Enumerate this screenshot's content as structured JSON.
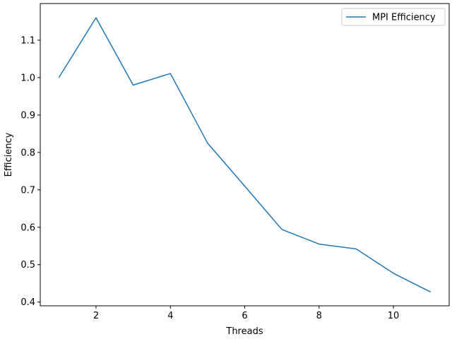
{
  "chart_data": {
    "type": "line",
    "title": "",
    "xlabel": "Threads",
    "ylabel": "Efficiency",
    "xlim": [
      0.5,
      11.5
    ],
    "ylim": [
      0.39,
      1.198
    ],
    "x_ticks": [
      2,
      4,
      6,
      8,
      10
    ],
    "x_tick_labels": [
      "2",
      "4",
      "6",
      "8",
      "10"
    ],
    "y_ticks": [
      0.4,
      0.5,
      0.6,
      0.7,
      0.8,
      0.9,
      1.0,
      1.1
    ],
    "y_tick_labels": [
      "0.4",
      "0.5",
      "0.6",
      "0.7",
      "0.8",
      "0.9",
      "1.0",
      "1.1"
    ],
    "grid": false,
    "legend_position": "top-right",
    "series": [
      {
        "name": "MPI Efficiency",
        "color": "#1f77b4",
        "x": [
          1,
          2,
          3,
          4,
          5,
          6,
          7,
          8,
          9,
          10,
          11
        ],
        "y": [
          1.0,
          1.16,
          0.98,
          1.011,
          0.825,
          0.71,
          0.594,
          0.555,
          0.542,
          0.477,
          0.427
        ]
      }
    ]
  }
}
